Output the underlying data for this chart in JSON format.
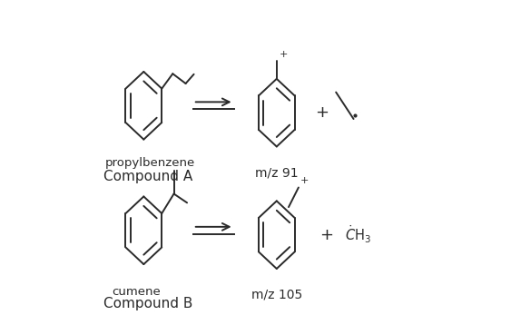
{
  "bg_color": "#ffffff",
  "line_color": "#2a2a2a",
  "line_width": 1.4,
  "fig_width": 5.63,
  "fig_height": 3.47,
  "label_A_name": "propylbenzene",
  "label_A_compound": "Compound A",
  "label_A_mz": "m/z 91",
  "label_B_name": "cumene",
  "label_B_compound": "Compound B",
  "label_B_mz": "m/z 105",
  "plus_sign": "+",
  "font_size_label": 9.5,
  "font_size_mz": 10,
  "font_size_compound": 11
}
